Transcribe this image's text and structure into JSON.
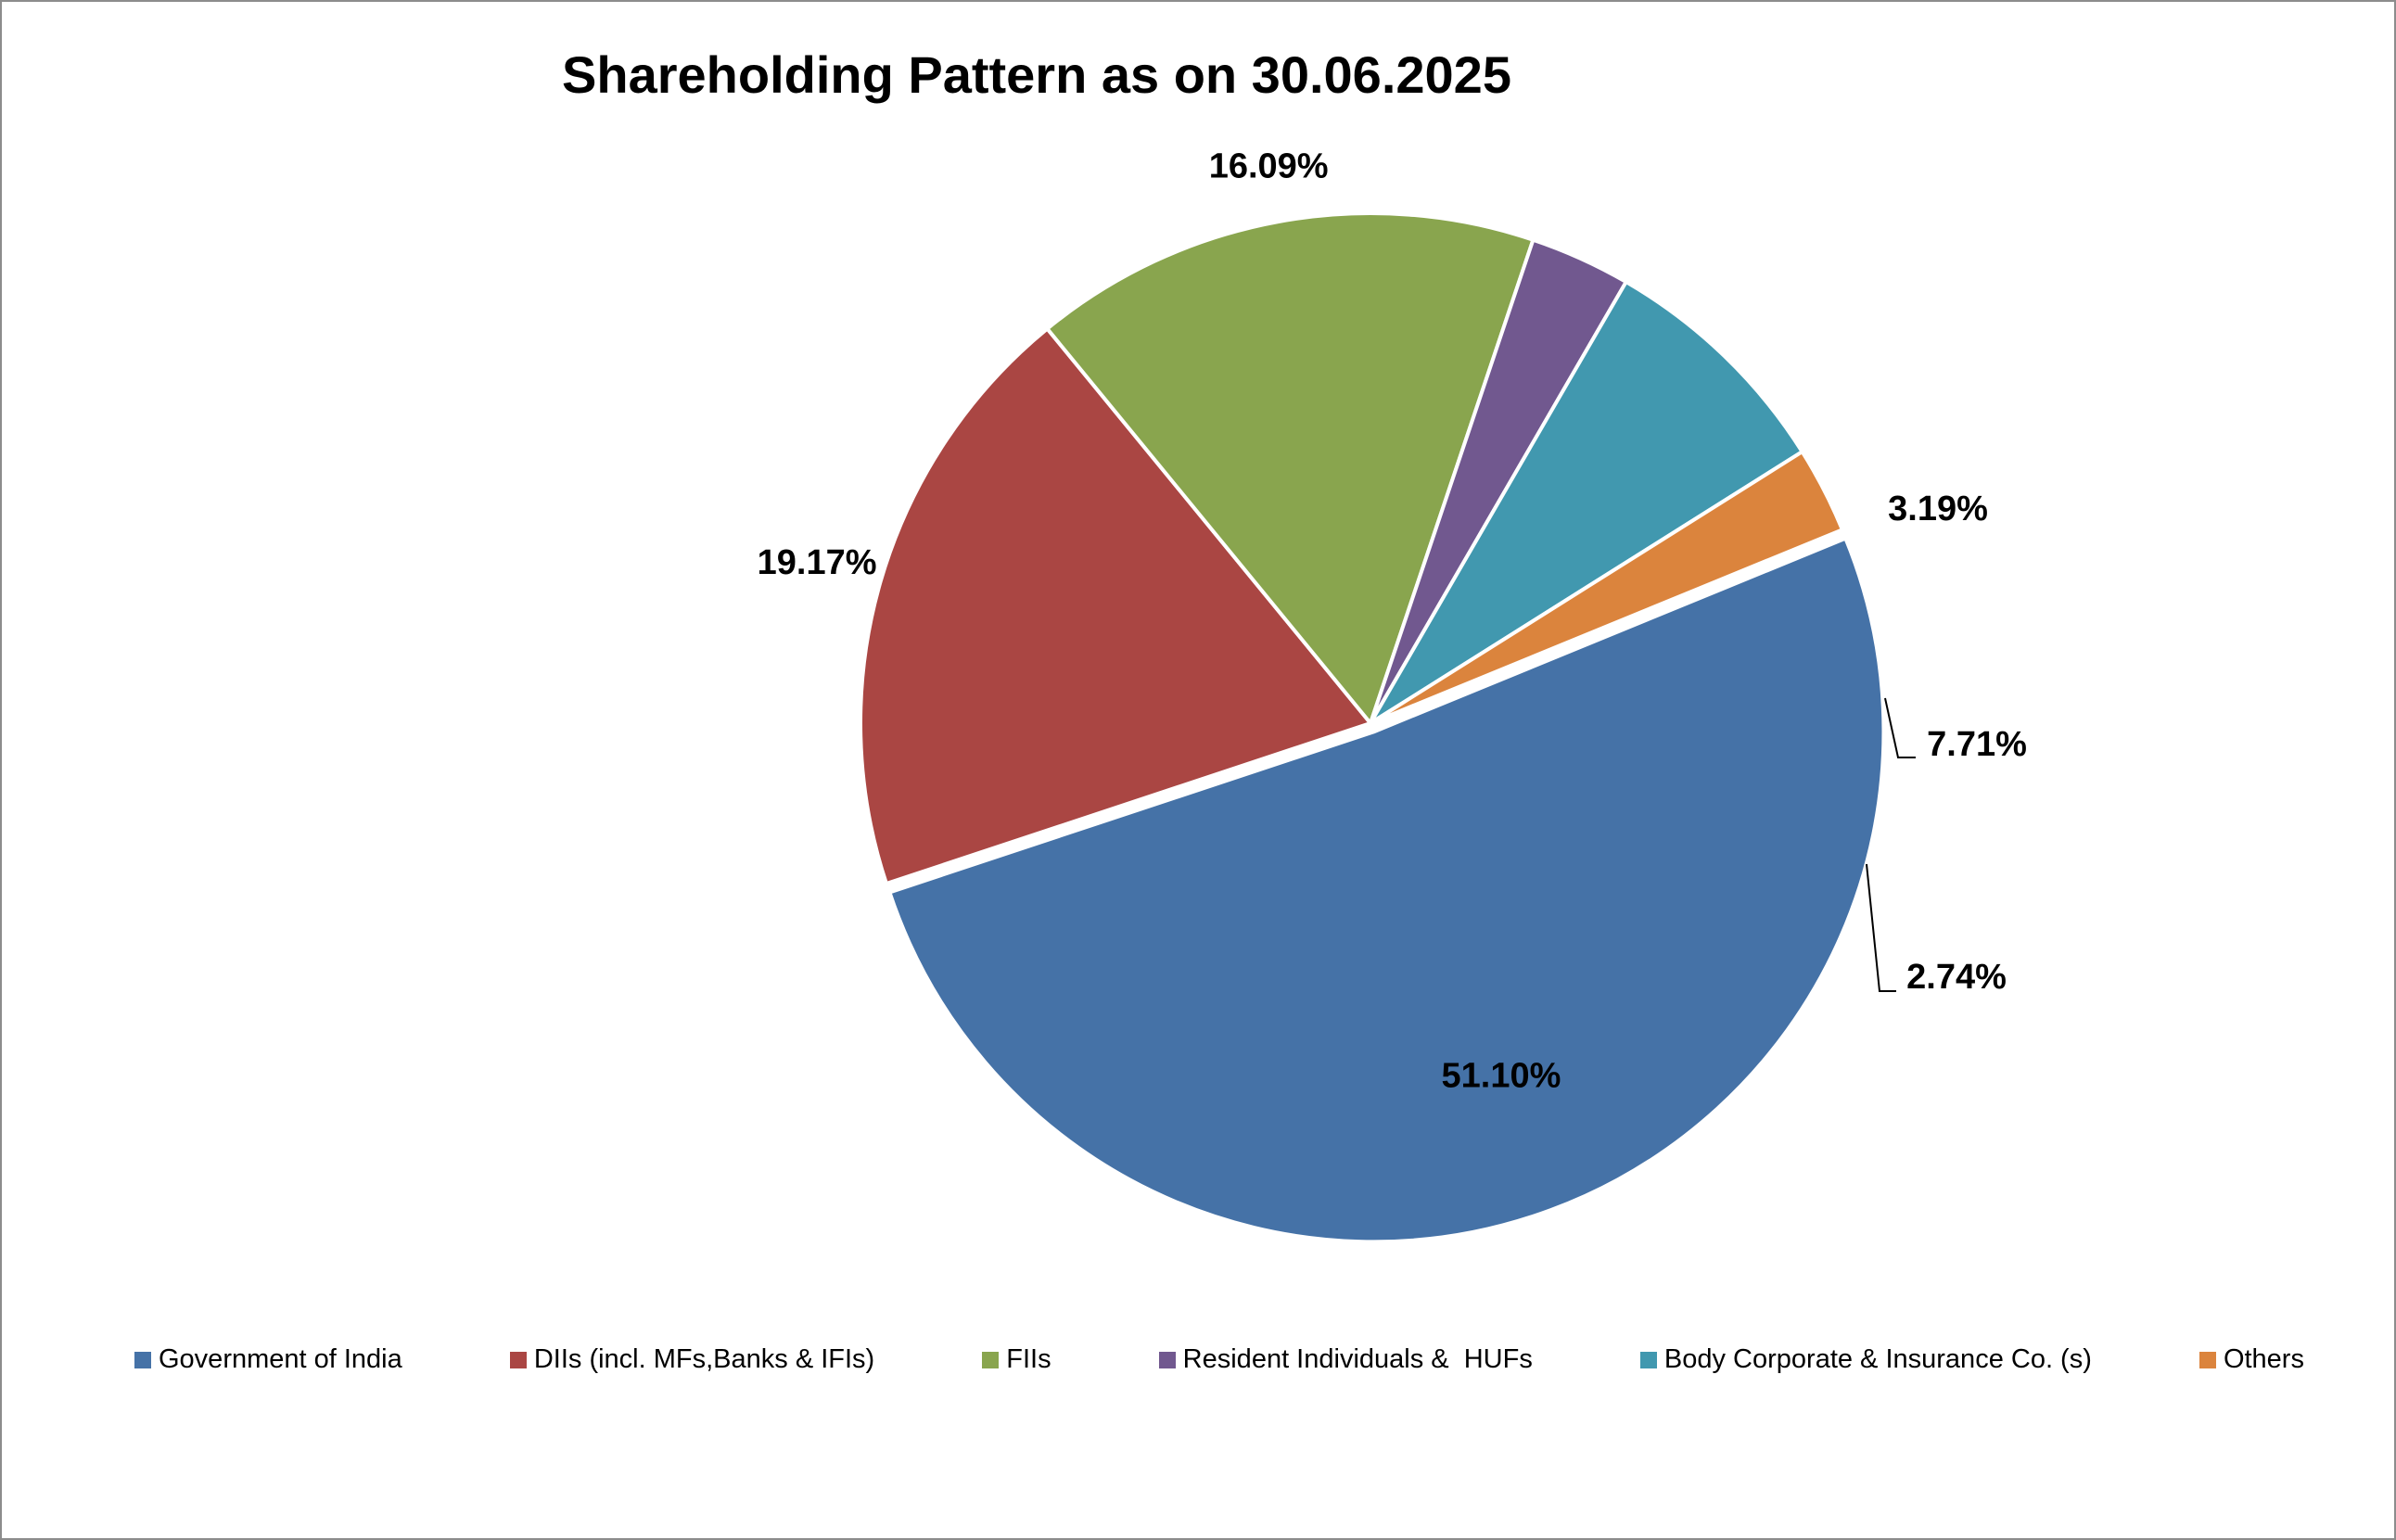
{
  "chart_data": {
    "type": "pie",
    "title": "Shareholding Pattern as on 30.06.2025",
    "legend_position": "bottom",
    "slices": [
      {
        "label": "Government of India",
        "value": 51.1,
        "value_label": "51.10%",
        "color": "#4572A7"
      },
      {
        "label": "DIIs (incl. MFs,Banks & IFIs)",
        "value": 19.17,
        "value_label": "19.17%",
        "color": "#AA4643"
      },
      {
        "label": "FIIs",
        "value": 16.09,
        "value_label": "16.09%",
        "color": "#89A54E"
      },
      {
        "label": "Resident Individuals &  HUFs",
        "value": 3.19,
        "value_label": "3.19%",
        "color": "#71588F"
      },
      {
        "label": "Body Corporate & Insurance Co. (s)",
        "value": 7.71,
        "value_label": "7.71%",
        "color": "#4198AF"
      },
      {
        "label": "Others",
        "value": 2.74,
        "value_label": "2.74%",
        "color": "#DB843D"
      }
    ]
  }
}
